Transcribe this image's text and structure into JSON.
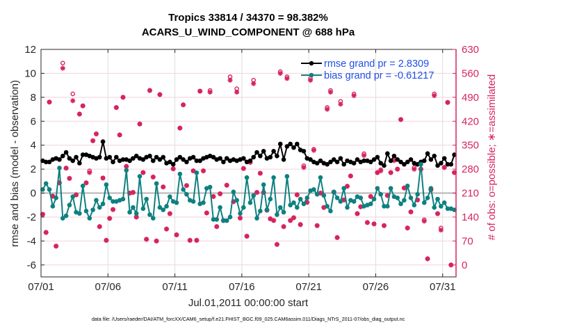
{
  "chart_data": {
    "type": "line",
    "title": [
      "Tropics 33814 / 34370 = 98.382%",
      "ACARS_U_WIND_COMPONENT @ 688 hPa"
    ],
    "xlabel": "Jul.01,2011 00:00:00 start",
    "ylabel_left": "rmse and bias (model - observation)",
    "ylabel_right": "# of obs: o=possible; ∗=assimilated",
    "footer": "data file: /Users/raeder/DAI/ATM_forcXX/CAM6_setup/f.e21.FHIST_BGC.f09_025.CAM6assim.011/Diags_NTrS_2011-07/obs_diag_output.nc",
    "x_unit": "days since Jul.01,2011 00:00:00",
    "xlim": [
      0,
      31
    ],
    "xticks": [
      0,
      5,
      10,
      15,
      20,
      25,
      30
    ],
    "xtick_labels": [
      "07/01",
      "07/06",
      "07/11",
      "07/16",
      "07/21",
      "07/26",
      "07/31"
    ],
    "ylim_left": [
      -7,
      12
    ],
    "yticks_left": [
      -6,
      -4,
      -2,
      0,
      2,
      4,
      6,
      8,
      10,
      12
    ],
    "ylim_right": [
      -35,
      630
    ],
    "yticks_right": [
      0,
      70,
      140,
      210,
      280,
      350,
      420,
      490,
      560,
      630
    ],
    "grid": true,
    "legend_position": "top-right",
    "legend": [
      {
        "name": "rmse grand pr = 2.8309",
        "series": "rmse"
      },
      {
        "name": "bias grand pr = -0.61217",
        "series": "bias"
      }
    ],
    "colors": {
      "rmse": "#000000",
      "bias": "#0e8080",
      "obs": "#d6245e",
      "legend_text": "#1f4fe6",
      "zero_line": "#b4b4b4",
      "grid": "#f2d2dc"
    },
    "series": [
      {
        "name": "rmse",
        "axis": "left",
        "values": [
          2.7,
          2.6,
          2.6,
          2.8,
          2.9,
          2.8,
          3.1,
          3.4,
          2.9,
          2.7,
          3.0,
          2.5,
          3.2,
          3.2,
          3.1,
          3.0,
          2.9,
          3.0,
          4.3,
          2.9,
          3.0,
          2.6,
          3.0,
          2.7,
          2.8,
          2.8,
          2.7,
          2.9,
          3.1,
          2.9,
          2.8,
          3.0,
          3.1,
          2.7,
          3.0,
          2.8,
          3.0,
          2.5,
          2.6,
          2.4,
          2.8,
          3.0,
          2.8,
          2.6,
          2.9,
          3.0,
          2.7,
          2.7,
          2.9,
          3.0,
          3.1,
          3.0,
          2.8,
          2.9,
          2.6,
          2.9,
          2.7,
          2.8,
          2.7,
          2.8,
          2.9,
          2.6,
          2.7,
          3.0,
          3.4,
          3.1,
          3.5,
          2.9,
          3.0,
          3.5,
          3.1,
          4.1,
          2.8,
          3.9,
          4.1,
          3.8,
          4.1,
          3.6,
          3.5,
          2.9,
          2.8,
          2.6,
          2.5,
          2.7,
          2.5,
          2.4,
          2.6,
          2.8,
          2.6,
          2.9,
          2.4,
          2.7,
          2.6,
          2.5,
          2.8,
          2.6,
          2.7,
          2.7,
          2.6,
          2.8,
          3.0,
          2.5,
          2.3,
          3.3,
          2.7,
          3.1,
          2.8,
          2.6,
          2.4,
          2.6,
          2.8,
          2.5,
          2.4,
          2.6,
          2.7,
          3.3,
          2.8,
          3.1,
          2.3,
          2.5,
          2.9,
          2.4,
          2.4,
          3.2
        ]
      },
      {
        "name": "bias",
        "axis": "left",
        "values": [
          0.3,
          0.8,
          0.3,
          -1.1,
          -0.4,
          2.1,
          -2.1,
          -1.9,
          -1.0,
          -0.3,
          -1.6,
          -1.7,
          0.6,
          -1.5,
          -2.1,
          -1.4,
          -0.6,
          -1.2,
          -0.9,
          0.7,
          -0.4,
          -0.7,
          -0.7,
          -0.6,
          -0.5,
          1.9,
          -1.6,
          -1.2,
          -1.7,
          1.4,
          -1.3,
          -0.5,
          -1.8,
          -2.1,
          0.8,
          -1.2,
          -1.4,
          -1.1,
          -0.3,
          -0.7,
          -0.8,
          1.6,
          0.3,
          -0.1,
          -0.6,
          -0.7,
          1.7,
          -0.9,
          -0.8,
          0.4,
          0.5,
          -2.2,
          -2.2,
          -1.2,
          -2.3,
          -2.3,
          -2.0,
          0.1,
          -0.6,
          -1.7,
          -1.2,
          1.3,
          -0.8,
          -0.2,
          -2.1,
          -1.5,
          0.7,
          -1.4,
          -0.5,
          1.3,
          -1.8,
          -1.2,
          -1.6,
          1.4,
          -1.0,
          -0.8,
          -1.2,
          -0.5,
          -0.9,
          -0.4,
          0.2,
          0.3,
          -0.1,
          1.3,
          -0.2,
          -1.1,
          -1.5,
          0.1,
          -0.4,
          -0.7,
          0.4,
          -1.2,
          -0.6,
          -0.7,
          -0.3,
          -0.4,
          -1.1,
          -1.0,
          -0.9,
          -0.5,
          0.4,
          -0.1,
          -1.1,
          -1.1,
          0.4,
          -0.3,
          -0.4,
          -0.9,
          -0.6,
          0.6,
          -0.4,
          -1.0,
          -0.1,
          2.4,
          -0.8,
          -0.4,
          0.4,
          -1.2,
          -0.5,
          -1.1,
          -0.8,
          -1.3,
          -1.3,
          -1.4
        ]
      },
      {
        "name": "obs_possible",
        "axis": "right",
        "marker": "o",
        "values": [
          148,
          95,
          476,
          201,
          55,
          240,
          590,
          283,
          253,
          500,
          205,
          441,
          465,
          240,
          275,
          363,
          383,
          112,
          254,
          72,
          136,
          162,
          460,
          380,
          490,
          288,
          210,
          212,
          140,
          412,
          270,
          75,
          510,
          257,
          70,
          498,
          228,
          105,
          150,
          281,
          88,
          400,
          468,
          232,
          72,
          275,
          72,
          508,
          275,
          152,
          510,
          200,
          112,
          208,
          130,
          233,
          550,
          185,
          515,
          137,
          282,
          84,
          300,
          540,
          212,
          268,
          212,
          160,
          135,
          130,
          60,
          565,
          112,
          550,
          130,
          138,
          205,
          118,
          290,
          183,
          545,
          338,
          115,
          210,
          168,
          460,
          510,
          213,
          80,
          478,
          190,
          230,
          260,
          500,
          150,
          170,
          325,
          124,
          200,
          120,
          270,
          278,
          115,
          203,
          270,
          310,
          280,
          425,
          225,
          108,
          155,
          285,
          190,
          280,
          132,
          18,
          220,
          500,
          150,
          108,
          285,
          475,
          0,
          270
        ]
      },
      {
        "name": "obs_assimilated",
        "axis": "right",
        "marker": "*",
        "values": [
          148,
          95,
          476,
          201,
          55,
          240,
          575,
          283,
          253,
          480,
          205,
          441,
          465,
          240,
          270,
          363,
          383,
          112,
          254,
          72,
          136,
          162,
          460,
          380,
          490,
          288,
          210,
          212,
          140,
          412,
          270,
          75,
          510,
          257,
          70,
          498,
          228,
          105,
          150,
          281,
          88,
          400,
          468,
          232,
          72,
          275,
          72,
          508,
          275,
          152,
          505,
          200,
          112,
          208,
          130,
          233,
          540,
          185,
          505,
          137,
          282,
          84,
          300,
          530,
          212,
          268,
          212,
          160,
          135,
          130,
          60,
          560,
          112,
          545,
          130,
          138,
          205,
          118,
          285,
          183,
          540,
          335,
          115,
          210,
          168,
          455,
          505,
          213,
          80,
          470,
          190,
          230,
          260,
          495,
          150,
          170,
          320,
          124,
          200,
          120,
          270,
          275,
          115,
          203,
          270,
          305,
          280,
          425,
          225,
          108,
          155,
          280,
          190,
          280,
          128,
          18,
          220,
          495,
          150,
          102,
          285,
          475,
          0,
          270
        ]
      }
    ]
  }
}
